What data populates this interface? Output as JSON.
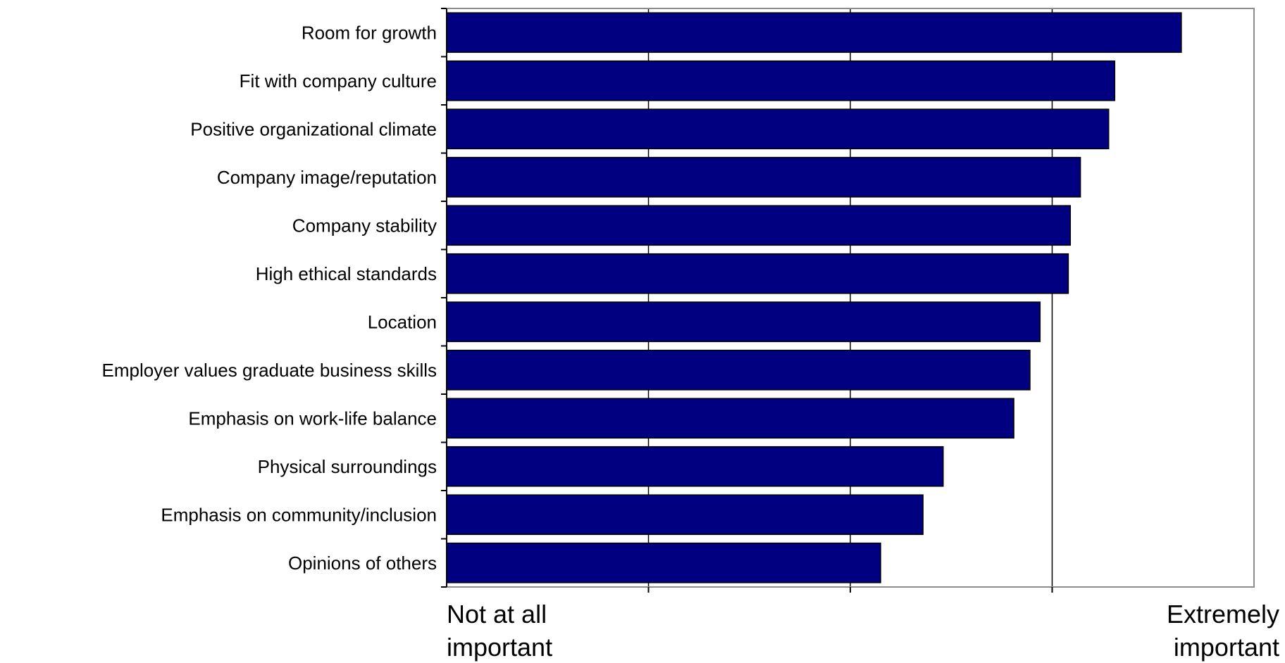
{
  "chart_data": {
    "type": "bar",
    "orientation": "horizontal",
    "categories": [
      "Room for growth",
      "Fit with company culture",
      "Positive organizational climate",
      "Company image/reputation",
      "Company stability",
      "High ethical standards",
      "Location",
      "Employer values graduate business skills",
      "Emphasis on work-life balance",
      "Physical surroundings",
      "Emphasis on community/inclusion",
      "Opinions of others"
    ],
    "values": [
      3.64,
      3.31,
      3.28,
      3.14,
      3.09,
      3.08,
      2.94,
      2.89,
      2.81,
      2.46,
      2.36,
      2.15
    ],
    "xlim": [
      0,
      4
    ],
    "x_gridlines": [
      1,
      2,
      3
    ],
    "bar_color": "#000080",
    "grid": true,
    "x_end_labels": {
      "low": [
        "Not at all",
        "important"
      ],
      "high": [
        "Extremely",
        "important"
      ]
    }
  }
}
